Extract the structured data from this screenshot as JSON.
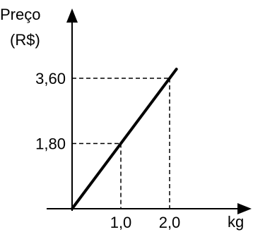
{
  "chart_data": {
    "type": "line",
    "title": "",
    "ylabel": [
      "Preço",
      "(R$)"
    ],
    "xlabel": "kg",
    "xlim": [
      0,
      2.0
    ],
    "ylim": [
      0,
      3.6
    ],
    "grid": false,
    "series": [
      {
        "x": [
          0,
          2.0
        ],
        "y": [
          0,
          3.6
        ]
      }
    ],
    "x_ticks": [
      {
        "value": 1.0,
        "label": "1,0"
      },
      {
        "value": 2.0,
        "label": "2,0"
      }
    ],
    "y_ticks": [
      {
        "value": 1.8,
        "label": "1,80"
      },
      {
        "value": 3.6,
        "label": "3,60"
      }
    ],
    "guide_points": [
      {
        "x": 1.0,
        "y": 1.8
      },
      {
        "x": 2.0,
        "y": 3.6
      }
    ]
  }
}
